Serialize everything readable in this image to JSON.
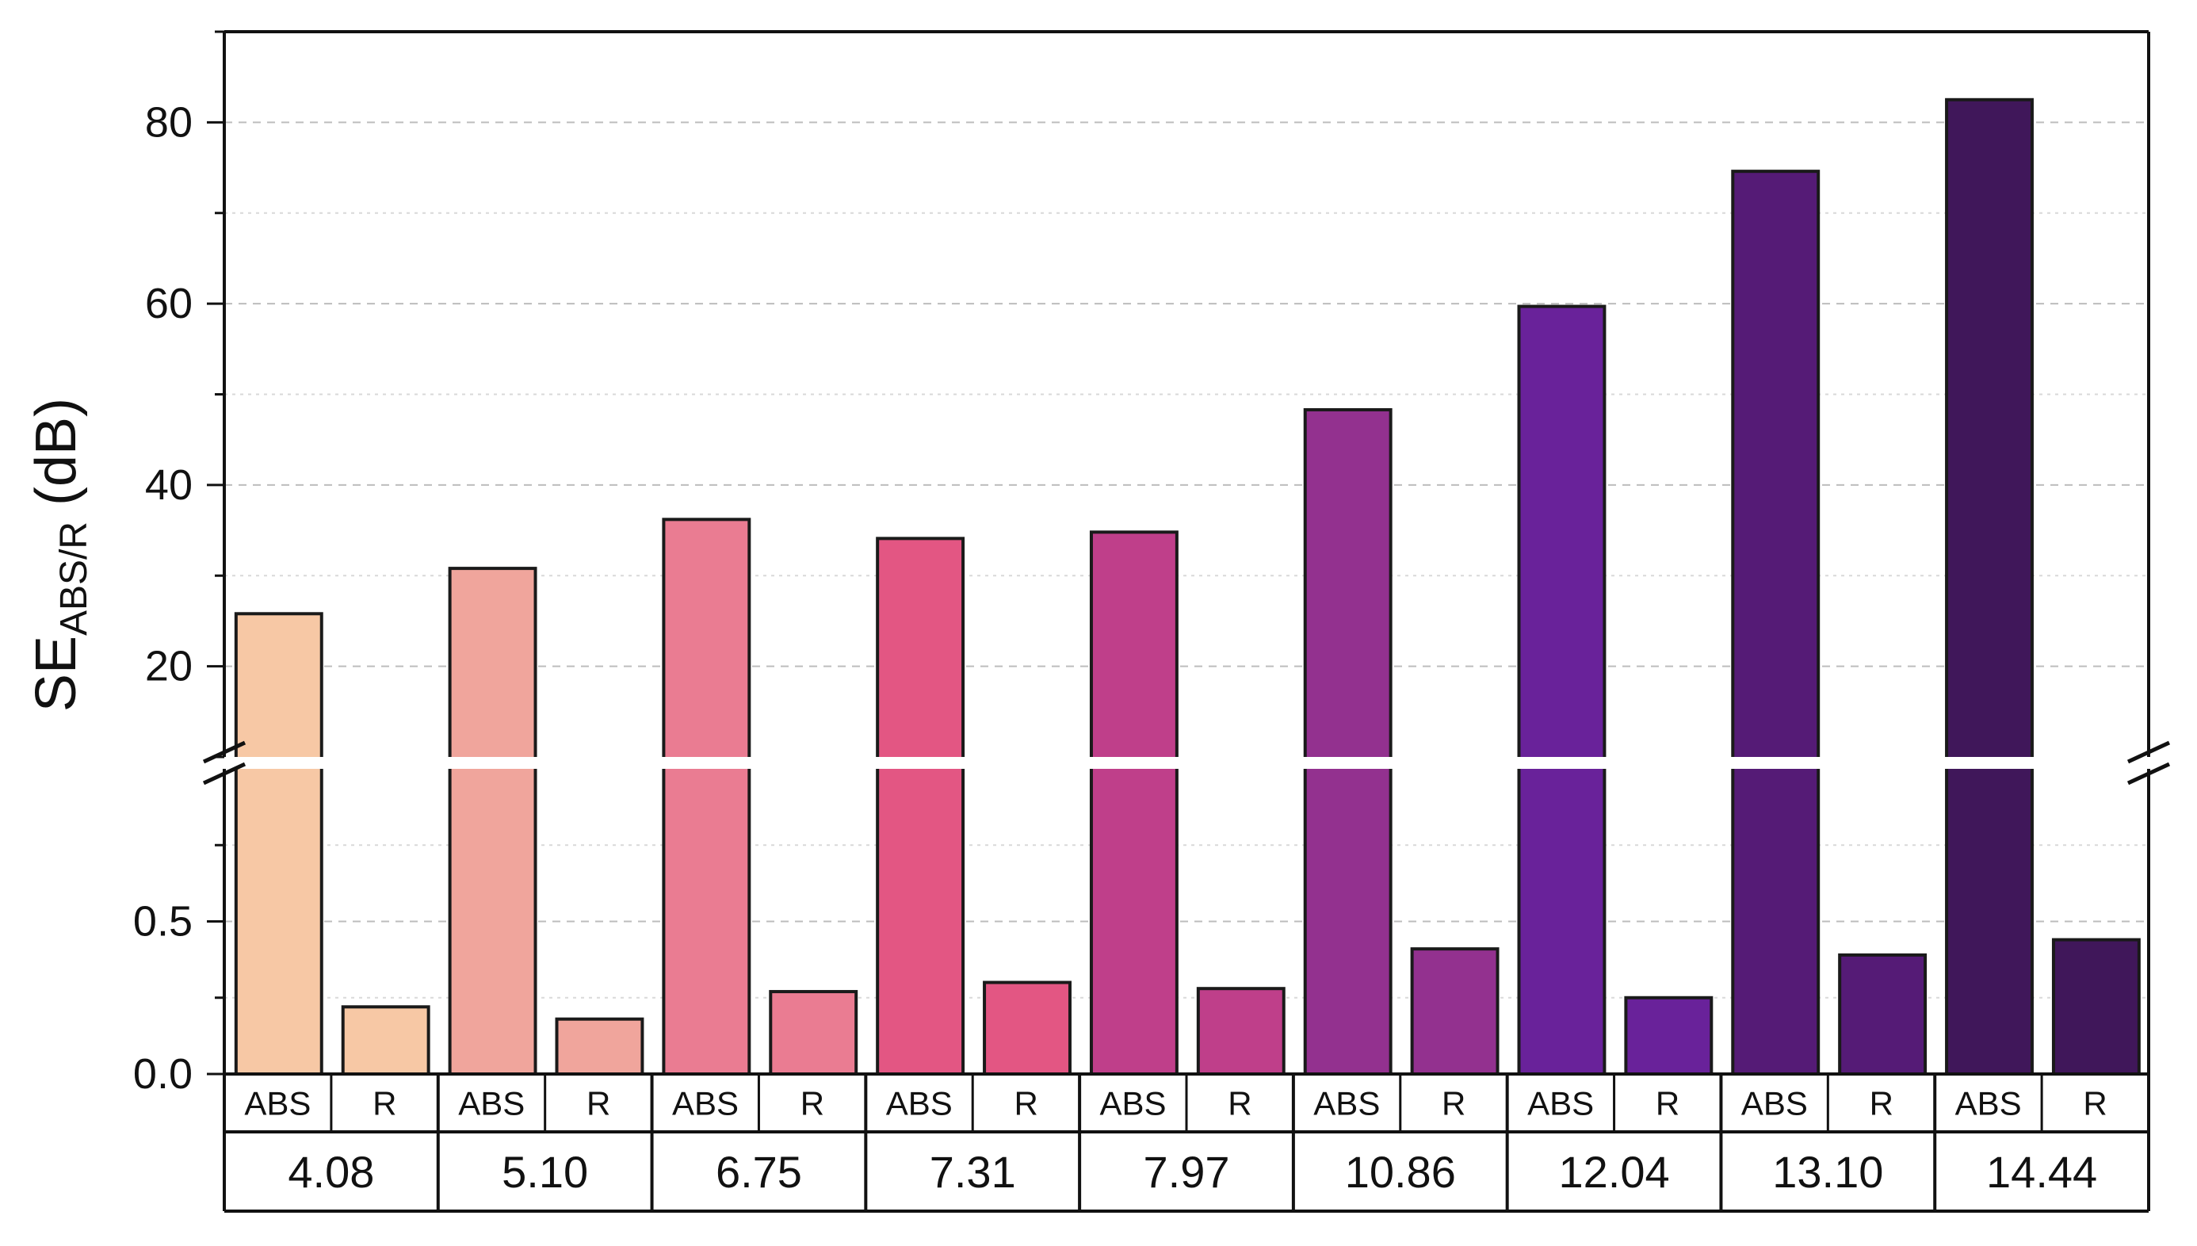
{
  "chart_data": {
    "type": "bar",
    "ylabel_main": "SE",
    "ylabel_sub": "ABS/R",
    "ylabel_unit": " (dB)",
    "axis_break": true,
    "upper_ylim": [
      10,
      90
    ],
    "upper_yticks": [
      "20",
      "40",
      "60",
      "80"
    ],
    "lower_ylim": [
      0,
      1.0
    ],
    "lower_yticks": [
      "0.0",
      "0.5"
    ],
    "grid": true,
    "bar_labels": [
      "ABS",
      "R"
    ],
    "groups": [
      {
        "label": "4.08",
        "abs": 25.8,
        "r": 0.22,
        "color": "#f7c8a5"
      },
      {
        "label": "5.10",
        "abs": 30.8,
        "r": 0.18,
        "color": "#f0a59c"
      },
      {
        "label": "6.75",
        "abs": 36.2,
        "r": 0.27,
        "color": "#ea7c92"
      },
      {
        "label": "7.31",
        "abs": 34.1,
        "r": 0.3,
        "color": "#e35683"
      },
      {
        "label": "7.97",
        "abs": 34.8,
        "r": 0.28,
        "color": "#bf3f8a"
      },
      {
        "label": "10.86",
        "abs": 48.3,
        "r": 0.41,
        "color": "#93318f"
      },
      {
        "label": "12.04",
        "abs": 59.7,
        "r": 0.25,
        "color": "#69229a"
      },
      {
        "label": "13.10",
        "abs": 74.6,
        "r": 0.39,
        "color": "#551b76"
      },
      {
        "label": "14.44",
        "abs": 82.5,
        "r": 0.44,
        "color": "#40175a"
      }
    ]
  }
}
